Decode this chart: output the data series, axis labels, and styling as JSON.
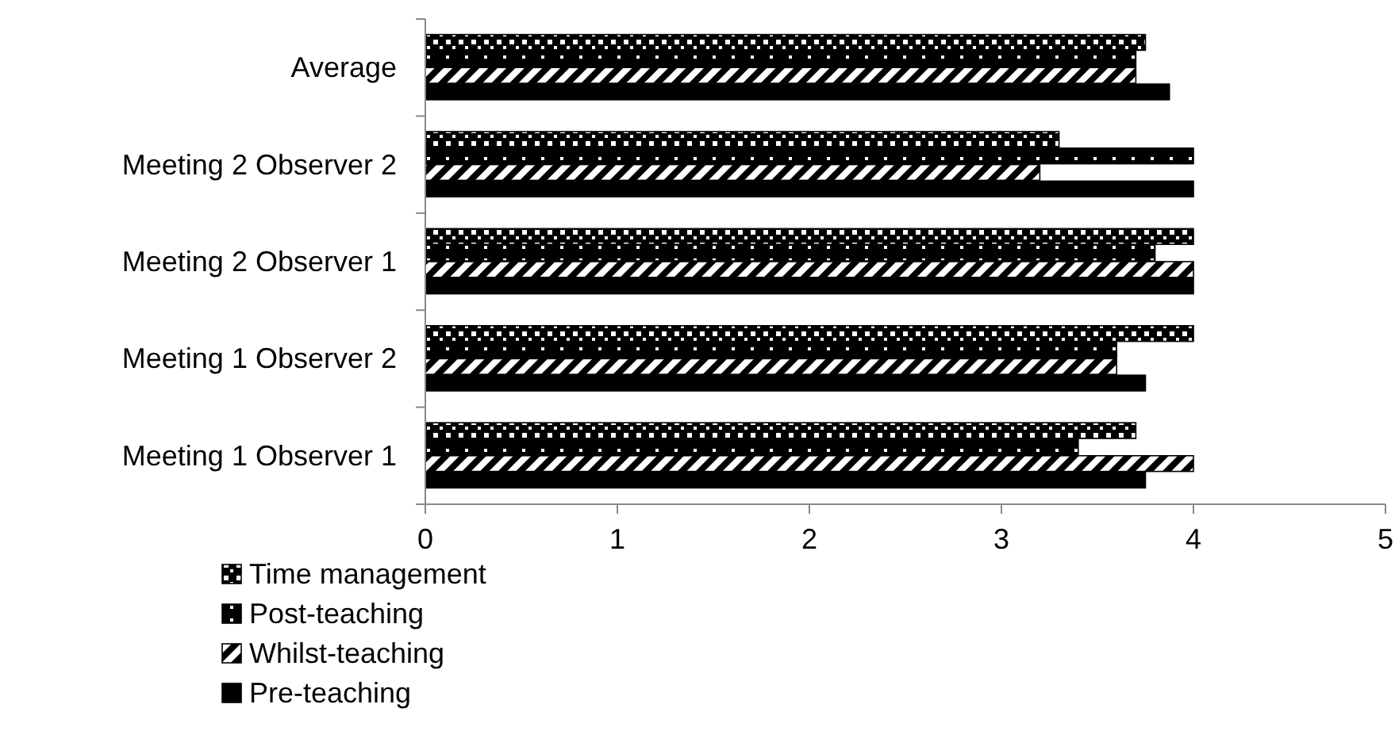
{
  "chart_data": {
    "type": "bar",
    "orientation": "horizontal",
    "categories": [
      "Average",
      "Meeting 2 Observer 2",
      "Meeting 2 Observer 1",
      "Meeting 1 Observer 2",
      "Meeting 1 Observer 1"
    ],
    "series": [
      {
        "name": "Time management",
        "color": "#000000",
        "values": [
          3.75,
          3.3,
          4,
          4,
          3.7
        ]
      },
      {
        "name": "Post-teaching",
        "color": "#000000",
        "values": [
          3.7,
          4,
          3.8,
          3.6,
          3.4
        ]
      },
      {
        "name": "Whilst-teaching",
        "color": "#000000",
        "values": [
          3.7,
          3.2,
          4,
          3.6,
          4
        ]
      },
      {
        "name": "Pre-teaching",
        "color": "#000000",
        "values": [
          3.875,
          4,
          4,
          3.75,
          3.75
        ]
      }
    ],
    "xlim": [
      0,
      5
    ],
    "xticks": [
      0,
      1,
      2,
      3,
      4,
      5
    ],
    "grid": false,
    "legend": "bottom left"
  }
}
